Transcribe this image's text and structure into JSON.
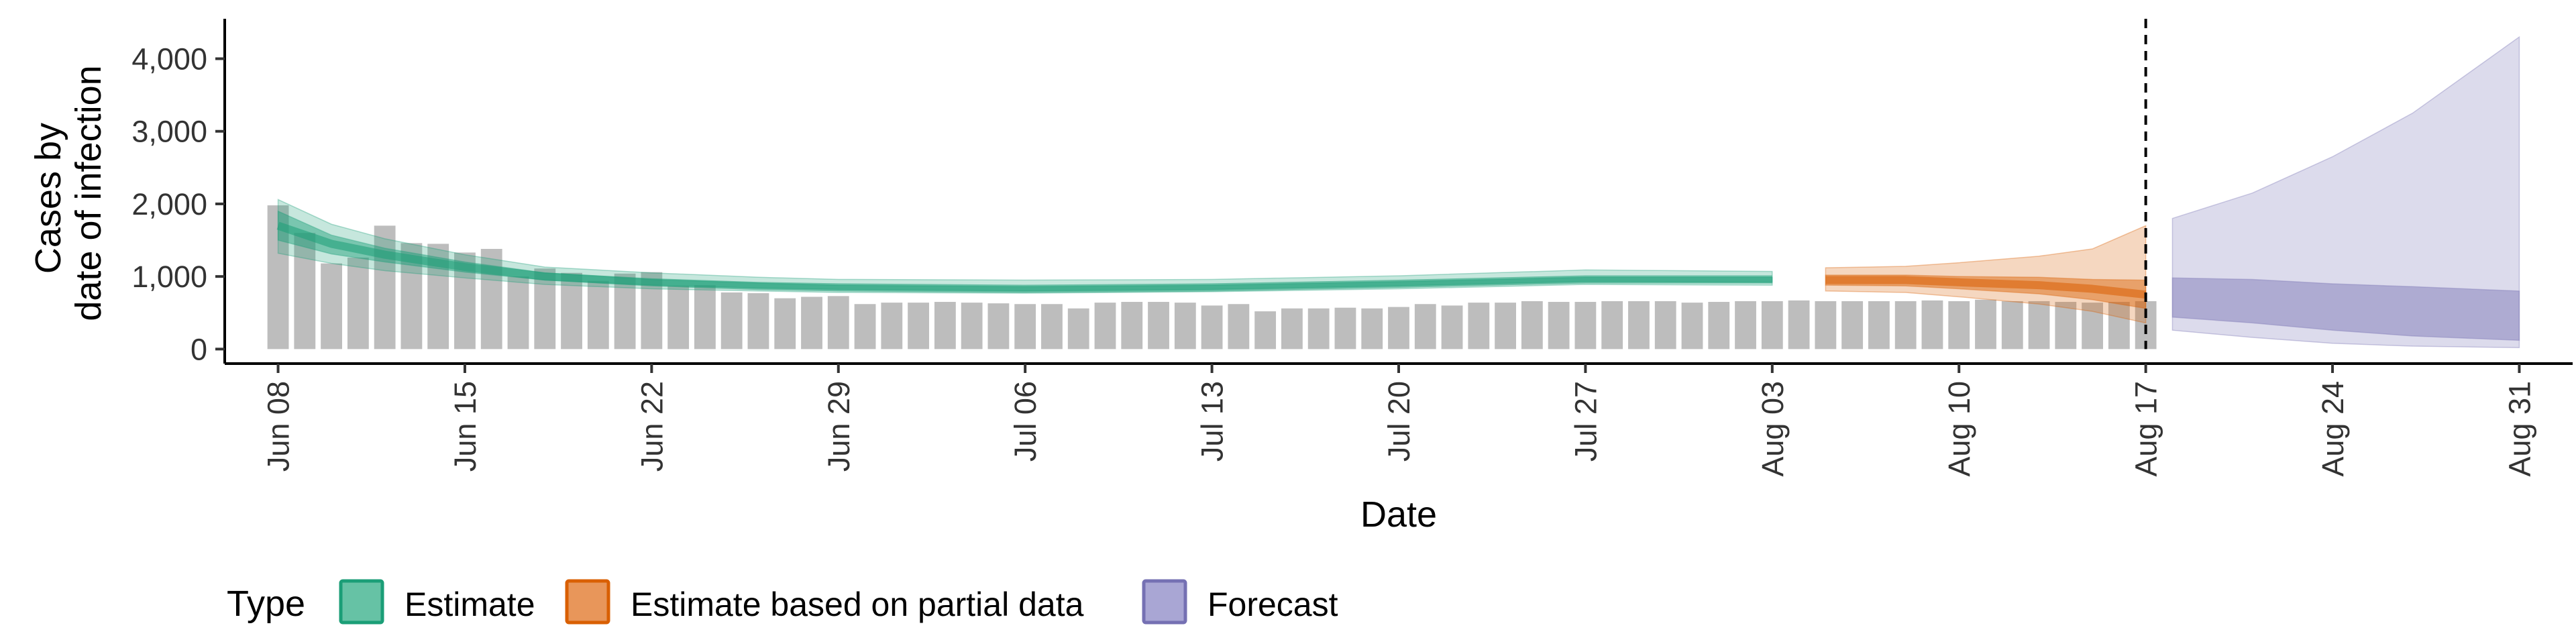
{
  "chart_data": {
    "type": "bar",
    "xlabel": "Date",
    "ylabel_lines": [
      "Cases by",
      "date of infection"
    ],
    "x_range": [
      "2021-06-06",
      "2021-09-02"
    ],
    "ylim": [
      -200,
      4550
    ],
    "y_ticks": [
      0,
      1000,
      2000,
      3000,
      4000
    ],
    "y_tick_labels": [
      "0",
      "1,000",
      "2,000",
      "3,000",
      "4,000"
    ],
    "x_ticks": [
      "2021-06-08",
      "2021-06-15",
      "2021-06-22",
      "2021-06-29",
      "2021-07-06",
      "2021-07-13",
      "2021-07-20",
      "2021-07-27",
      "2021-08-03",
      "2021-08-10",
      "2021-08-17",
      "2021-08-24",
      "2021-08-31"
    ],
    "x_tick_labels": [
      "Jun 08",
      "Jun 15",
      "Jun 22",
      "Jun 29",
      "Jul 06",
      "Jul 13",
      "Jul 20",
      "Jul 27",
      "Aug 03",
      "Aug 10",
      "Aug 17",
      "Aug 24",
      "Aug 31"
    ],
    "vline_date": "2021-08-17",
    "grid": false,
    "legend": {
      "title": "Type",
      "position": "bottom",
      "items": [
        {
          "label": "Estimate",
          "fill": "#66c2a5",
          "stroke": "#1b9e77"
        },
        {
          "label": "Estimate based on partial data",
          "fill": "#e8965a",
          "stroke": "#d95f02"
        },
        {
          "label": "Forecast",
          "fill": "#a9a6d4",
          "stroke": "#7570b3"
        }
      ]
    },
    "colors": {
      "bars": "#bdbdbd",
      "estimate": "#1b9e77",
      "partial": "#d95f02",
      "forecast": "#7570b3"
    },
    "reported_cases": {
      "start": "2021-06-08",
      "values": [
        1980,
        1600,
        1180,
        1260,
        1700,
        1460,
        1450,
        1330,
        1380,
        1000,
        1110,
        1050,
        940,
        1040,
        1060,
        870,
        880,
        780,
        770,
        700,
        720,
        730,
        620,
        640,
        640,
        650,
        640,
        630,
        620,
        620,
        560,
        640,
        650,
        650,
        640,
        600,
        620,
        520,
        560,
        560,
        570,
        560,
        580,
        620,
        600,
        640,
        640,
        660,
        650,
        650,
        660,
        660,
        660,
        640,
        650,
        660,
        660,
        670,
        660,
        660,
        660,
        660,
        670,
        660,
        680,
        660,
        660,
        650,
        640,
        650,
        660
      ]
    },
    "series": [
      {
        "name": "Estimate",
        "dates": [
          "2021-06-08",
          "2021-06-10",
          "2021-06-12",
          "2021-06-15",
          "2021-06-18",
          "2021-06-22",
          "2021-06-26",
          "2021-06-29",
          "2021-07-06",
          "2021-07-13",
          "2021-07-20",
          "2021-07-27",
          "2021-08-03"
        ],
        "median": [
          1700,
          1450,
          1300,
          1130,
          1000,
          920,
          870,
          850,
          830,
          850,
          900,
          960,
          960
        ],
        "inner_lower": [
          1500,
          1310,
          1200,
          1060,
          950,
          880,
          840,
          820,
          800,
          820,
          870,
          930,
          920
        ],
        "inner_upper": [
          1900,
          1570,
          1390,
          1200,
          1050,
          960,
          910,
          880,
          860,
          880,
          930,
          990,
          990
        ],
        "outer_lower": [
          1320,
          1180,
          1080,
          980,
          890,
          830,
          800,
          780,
          770,
          790,
          830,
          890,
          880
        ],
        "outer_upper": [
          2060,
          1720,
          1520,
          1300,
          1130,
          1050,
          990,
          960,
          950,
          960,
          1010,
          1090,
          1070
        ]
      },
      {
        "name": "Estimate based on partial data",
        "dates": [
          "2021-08-05",
          "2021-08-08",
          "2021-08-10",
          "2021-08-13",
          "2021-08-15",
          "2021-08-17"
        ],
        "median": [
          950,
          950,
          920,
          880,
          830,
          750
        ],
        "inner_lower": [
          880,
          870,
          830,
          760,
          680,
          560
        ],
        "inner_upper": [
          1020,
          1020,
          1000,
          990,
          960,
          950
        ],
        "outer_lower": [
          800,
          780,
          720,
          620,
          520,
          360
        ],
        "outer_upper": [
          1120,
          1140,
          1190,
          1280,
          1380,
          1700
        ]
      },
      {
        "name": "Forecast",
        "dates": [
          "2021-08-18",
          "2021-08-21",
          "2021-08-24",
          "2021-08-27",
          "2021-08-31"
        ],
        "inner_lower": [
          440,
          360,
          260,
          180,
          120
        ],
        "inner_upper": [
          980,
          960,
          900,
          860,
          800
        ],
        "outer_lower": [
          260,
          160,
          80,
          40,
          20
        ],
        "outer_upper": [
          1800,
          2150,
          2650,
          3250,
          4300
        ]
      }
    ]
  }
}
